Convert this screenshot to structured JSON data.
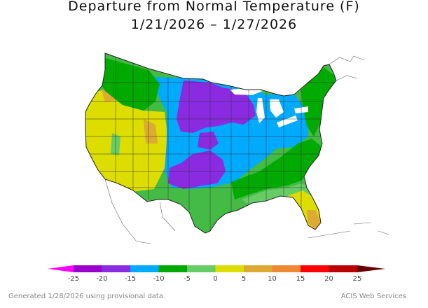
{
  "title_line1": "Departure from Normal Temperature (F)",
  "title_line2": "1/21/2026 – 1/27/2026",
  "legend": {
    "labels": [
      "-25",
      "-20",
      "-15",
      "-10",
      "-5",
      "0",
      "5",
      "10",
      "15",
      "20",
      "25"
    ],
    "bins": [
      {
        "range": "< -25",
        "color": "#ff00ff"
      },
      {
        "range": "-25 to -20",
        "color": "#9900cc"
      },
      {
        "range": "-20 to -15",
        "color": "#8a2be2"
      },
      {
        "range": "-15 to -10",
        "color": "#00aaff"
      },
      {
        "range": "-10 to -5",
        "color": "#00aa00"
      },
      {
        "range": "-5 to 0",
        "color": "#66cc66"
      },
      {
        "range": "0 to 5",
        "color": "#dddd00"
      },
      {
        "range": "5 to 10",
        "color": "#ddaa33"
      },
      {
        "range": "10 to 15",
        "color": "#ee8833"
      },
      {
        "range": "15 to 20",
        "color": "#ff0000"
      },
      {
        "range": "20 to 25",
        "color": "#bb0000"
      },
      {
        "range": "> 25",
        "color": "#660000"
      }
    ]
  },
  "footer_left": "Generated 1/28/2026 using provisional data.",
  "footer_right": "ACIS Web Services"
}
